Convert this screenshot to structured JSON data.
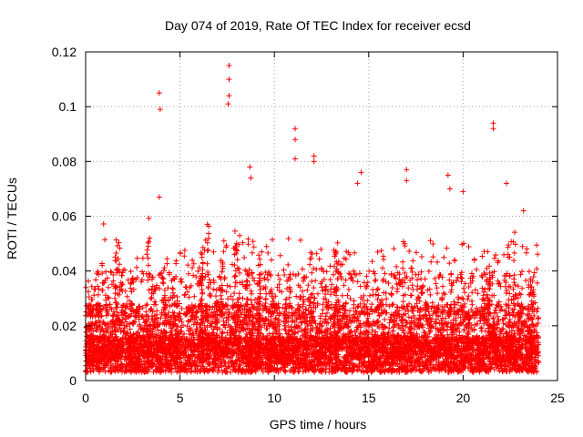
{
  "chart_data": {
    "type": "scatter",
    "title": "Day 074 of 2019, Rate Of TEC Index for receiver ecsd",
    "xlabel": "GPS time / hours",
    "ylabel": "ROTI / TECUs",
    "xlim": [
      0,
      25
    ],
    "ylim": [
      0,
      0.12
    ],
    "xticks": [
      0,
      5,
      10,
      15,
      20,
      25
    ],
    "xtick_labels": [
      "0",
      "5",
      "10",
      "15",
      "20",
      "25"
    ],
    "yticks": [
      0,
      0.02,
      0.04,
      0.06,
      0.08,
      0.1,
      0.12
    ],
    "ytick_labels": [
      "0",
      "0.02",
      "0.04",
      "0.06",
      "0.08",
      "0.1",
      "0.12"
    ],
    "grid": true,
    "marker": "plus",
    "marker_color": "#ff0000",
    "series": [
      {
        "x_range": [
          0,
          24
        ],
        "typical_range": [
          0.003,
          0.04
        ],
        "outliers": [
          {
            "x": 3.9,
            "y": 0.105
          },
          {
            "x": 3.95,
            "y": 0.099
          },
          {
            "x": 3.9,
            "y": 0.067
          },
          {
            "x": 7.6,
            "y": 0.115
          },
          {
            "x": 7.6,
            "y": 0.11
          },
          {
            "x": 7.6,
            "y": 0.104
          },
          {
            "x": 7.55,
            "y": 0.101
          },
          {
            "x": 8.7,
            "y": 0.078
          },
          {
            "x": 8.75,
            "y": 0.074
          },
          {
            "x": 11.1,
            "y": 0.092
          },
          {
            "x": 11.1,
            "y": 0.088
          },
          {
            "x": 11.1,
            "y": 0.081
          },
          {
            "x": 12.1,
            "y": 0.082
          },
          {
            "x": 12.1,
            "y": 0.08
          },
          {
            "x": 14.6,
            "y": 0.076
          },
          {
            "x": 14.4,
            "y": 0.072
          },
          {
            "x": 17.0,
            "y": 0.077
          },
          {
            "x": 17.0,
            "y": 0.073
          },
          {
            "x": 19.2,
            "y": 0.075
          },
          {
            "x": 19.3,
            "y": 0.07
          },
          {
            "x": 21.6,
            "y": 0.094
          },
          {
            "x": 21.6,
            "y": 0.092
          },
          {
            "x": 22.3,
            "y": 0.072
          },
          {
            "x": 20.0,
            "y": 0.069
          },
          {
            "x": 23.2,
            "y": 0.062
          }
        ]
      }
    ]
  }
}
